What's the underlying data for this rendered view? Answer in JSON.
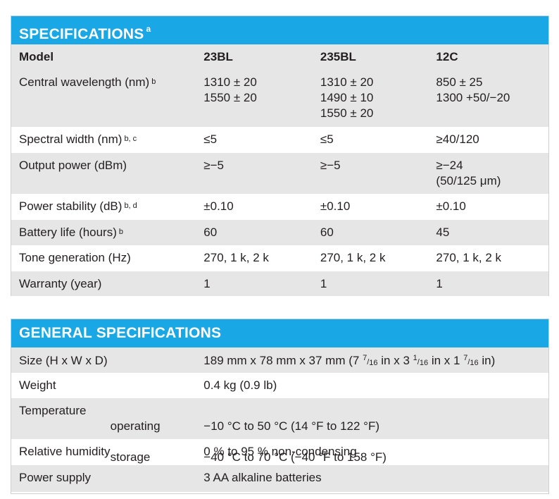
{
  "specs": {
    "title": "SPECIFICATIONS",
    "title_footnote": "a",
    "columns": [
      "Model",
      "23BL",
      "235BL",
      "12C"
    ],
    "rows": [
      {
        "label": "Central wavelength (nm)",
        "fn": "b",
        "values": [
          "1310 ± 20\n1550 ± 20",
          "1310 ± 20\n1490 ± 10\n1550 ± 20",
          "850 ± 25\n1300 +50/−20"
        ]
      },
      {
        "label": "Spectral width (nm)",
        "fn": "b, c",
        "values": [
          "≤5",
          "≤5",
          "≥40/120"
        ]
      },
      {
        "label": "Output power (dBm)",
        "fn": "",
        "values": [
          "≥−5",
          "≥−5",
          "≥−24\n(50/125 μm)"
        ]
      },
      {
        "label": "Power stability (dB)",
        "fn": "b, d",
        "values": [
          "±0.10",
          "±0.10",
          "±0.10"
        ]
      },
      {
        "label": "Battery life (hours)",
        "fn": "b",
        "values": [
          "60",
          "60",
          "45"
        ]
      },
      {
        "label": "Tone generation (Hz)",
        "fn": "",
        "values": [
          "270, 1 k, 2 k",
          "270, 1 k, 2 k",
          "270, 1 k, 2 k"
        ]
      },
      {
        "label": "Warranty (year)",
        "fn": "",
        "values": [
          "1",
          "1",
          "1"
        ]
      }
    ]
  },
  "general": {
    "title": "GENERAL SPECIFICATIONS",
    "size": {
      "label": "Size (H x W x D)",
      "metric": "189 mm x 78 mm x 37 mm (",
      "h_whole": "7",
      "h_num": "7",
      "h_den": "16",
      "w_whole": "3",
      "w_num": "1",
      "w_den": "16",
      "d_whole": "1",
      "d_num": "7",
      "d_den": "16",
      "unit_in": "in",
      "sep": " x ",
      "close": ")"
    },
    "weight": {
      "label": "Weight",
      "value": "0.4 kg (0.9 lb)"
    },
    "temperature": {
      "label": "Temperature",
      "operating_label": "operating",
      "storage_label": "storage",
      "operating_value": "−10 °C to 50 °C (14 °F to 122 °F)",
      "storage_value": "−40 °C to 70 °C (−40 °F to 158 °F)"
    },
    "humidity": {
      "label": "Relative humidity",
      "value": "0 % to 95 % non-condensing"
    },
    "power": {
      "label": "Power supply",
      "value": "3 AA alkaline batteries"
    }
  }
}
